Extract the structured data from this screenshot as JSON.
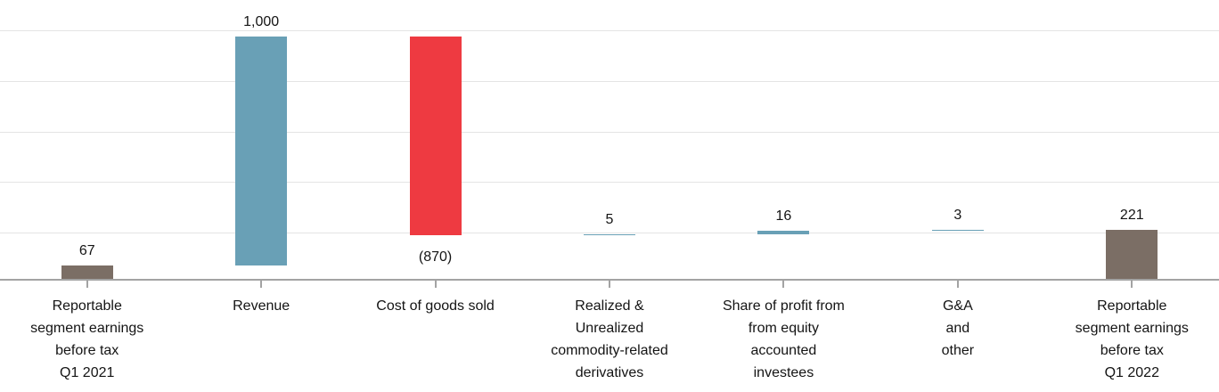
{
  "chart_data": {
    "type": "bar",
    "subtype": "waterfall",
    "title": "",
    "xlabel": "",
    "ylabel": "",
    "ylim": [
      0,
      1100
    ],
    "gridline_values": [
      220,
      440,
      660,
      880,
      1100
    ],
    "grid": true,
    "legend": "none",
    "colors": {
      "total": "#7b6e65",
      "increase": "#69a0b6",
      "decrease": "#ee3a41",
      "gridline": "#e4e4e4",
      "axis": "#a3a3a3",
      "text": "#141414"
    },
    "categories": [
      "Reportable\nsegment earnings\nbefore tax\nQ1 2021",
      "Revenue",
      "Cost of goods sold",
      "Realized &\nUnrealized\ncommodity-related\nderivatives",
      "Share of profit from\nfrom equity\naccounted\ninvestees",
      "G&A\nand\nother",
      "Reportable\nsegment earnings\nbefore tax\nQ1 2022"
    ],
    "items": [
      {
        "category": "Reportable\nsegment earnings\nbefore tax\nQ1 2021",
        "value": 67,
        "kind": "total",
        "label": "67",
        "label_position": "above"
      },
      {
        "category": "Revenue",
        "value": 1000,
        "kind": "increase",
        "label": "1,000",
        "label_position": "above"
      },
      {
        "category": "Cost of goods sold",
        "value": -870,
        "kind": "decrease",
        "label": "(870)",
        "label_position": "below"
      },
      {
        "category": "Realized &\nUnrealized\ncommodity-related\nderivatives",
        "value": 5,
        "kind": "increase",
        "label": "5",
        "label_position": "above"
      },
      {
        "category": "Share of profit from\nfrom equity\naccounted\ninvestees",
        "value": 16,
        "kind": "increase",
        "label": "16",
        "label_position": "above"
      },
      {
        "category": "G&A\nand\nother",
        "value": 3,
        "kind": "increase",
        "label": "3",
        "label_position": "above"
      },
      {
        "category": "Reportable\nsegment earnings\nbefore tax\nQ1 2022",
        "value": 221,
        "kind": "total",
        "label": "221",
        "label_position": "above"
      }
    ]
  }
}
